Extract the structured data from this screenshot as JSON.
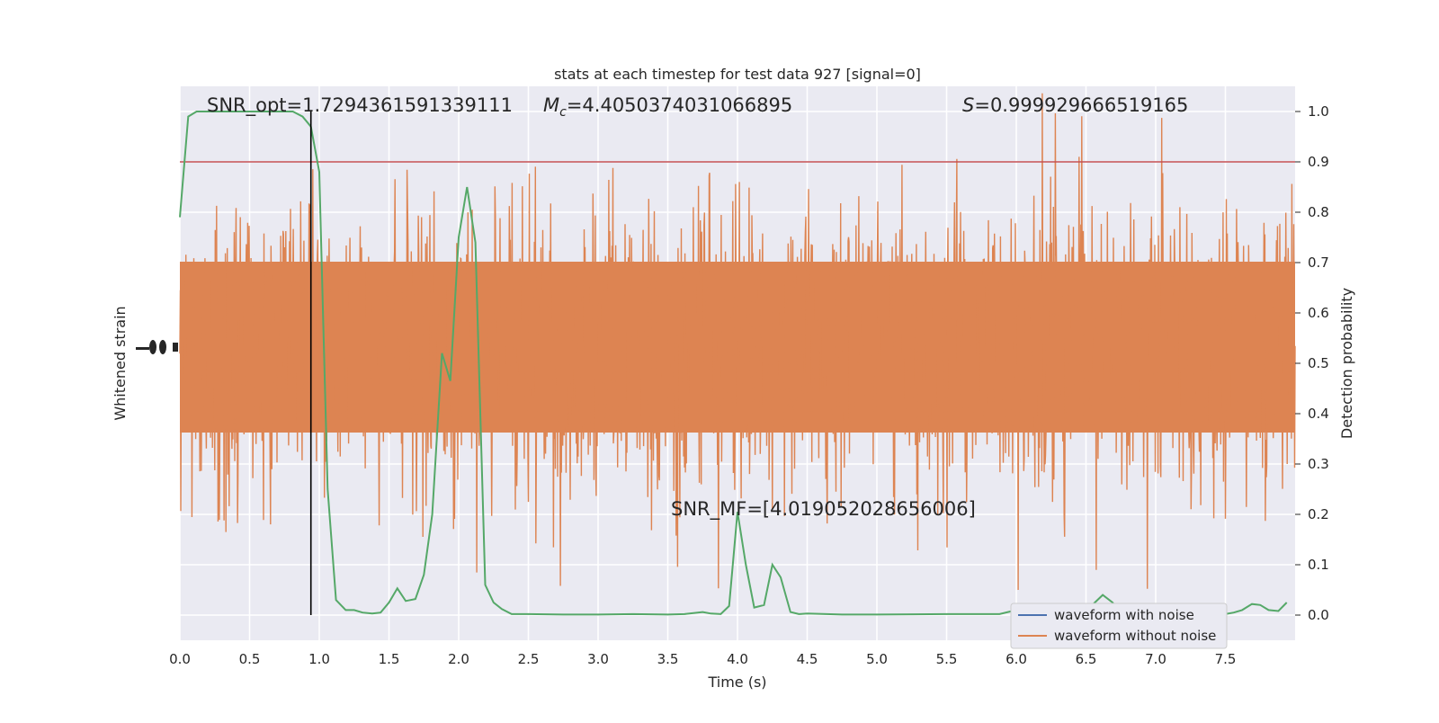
{
  "chart_data": {
    "type": "line",
    "title": "stats at each timestep for test data 927 [signal=0]",
    "xlabel": "Time (s)",
    "ylabel_left": "Whitened strain",
    "ylabel_right": "Detection probability",
    "xlim": [
      0.0,
      8.0
    ],
    "ylim_right": [
      -0.05,
      1.05
    ],
    "x_ticks": [
      "0.0",
      "0.5",
      "1.0",
      "1.5",
      "2.0",
      "2.5",
      "3.0",
      "3.5",
      "4.0",
      "4.5",
      "5.0",
      "5.5",
      "6.0",
      "6.5",
      "7.0",
      "7.5"
    ],
    "y_ticks_right": [
      "0.0",
      "0.1",
      "0.2",
      "0.3",
      "0.4",
      "0.5",
      "0.6",
      "0.7",
      "0.8",
      "0.9",
      "1.0"
    ],
    "grid": true,
    "legend_placement": "lower-right",
    "annotations": {
      "snr_opt": "SNR_opt=1.7294361591339111",
      "mc_symbol": "M",
      "mc_subscript": "c",
      "mc_value": "=4.4050374031066895",
      "s_symbol": "S",
      "s_value": "=0.999929666519165",
      "snr_mf": "SNR_MF=[4.019052028656006]"
    },
    "threshold": 0.9,
    "marker_time": 0.94,
    "series": [
      {
        "name": "waveform with noise",
        "color": "#4c72b0"
      },
      {
        "name": "waveform without noise",
        "color": "#dd8452"
      }
    ],
    "detection_probability": {
      "color": "#55a868",
      "x": [
        0.0,
        0.06,
        0.12,
        0.19,
        0.25,
        0.31,
        0.38,
        0.44,
        0.5,
        0.56,
        0.62,
        0.69,
        0.75,
        0.81,
        0.88,
        0.94,
        1.0,
        1.06,
        1.12,
        1.19,
        1.25,
        1.31,
        1.38,
        1.44,
        1.5,
        1.56,
        1.62,
        1.69,
        1.75,
        1.81,
        1.88,
        1.94,
        2.0,
        2.06,
        2.12,
        2.19,
        2.25,
        2.31,
        2.38,
        2.5,
        2.75,
        3.0,
        3.25,
        3.5,
        3.62,
        3.75,
        3.81,
        3.88,
        3.94,
        4.0,
        4.06,
        4.12,
        4.19,
        4.25,
        4.31,
        4.38,
        4.44,
        4.5,
        4.75,
        5.0,
        5.5,
        5.88,
        6.0,
        6.25,
        6.5,
        6.62,
        6.69,
        6.75,
        7.0,
        7.5,
        7.56,
        7.62,
        7.69,
        7.75,
        7.81,
        7.88,
        7.94
      ],
      "y": [
        0.79,
        0.99,
        1.0,
        1.0,
        1.0,
        1.0,
        1.0,
        1.0,
        1.0,
        1.0,
        1.0,
        1.0,
        1.0,
        1.0,
        0.99,
        0.97,
        0.88,
        0.25,
        0.03,
        0.01,
        0.01,
        0.005,
        0.003,
        0.005,
        0.025,
        0.053,
        0.028,
        0.032,
        0.08,
        0.2,
        0.52,
        0.465,
        0.75,
        0.85,
        0.74,
        0.06,
        0.025,
        0.012,
        0.002,
        0.002,
        0.001,
        0.001,
        0.002,
        0.001,
        0.002,
        0.006,
        0.003,
        0.002,
        0.018,
        0.205,
        0.1,
        0.015,
        0.02,
        0.1,
        0.075,
        0.006,
        0.002,
        0.003,
        0.001,
        0.001,
        0.002,
        0.002,
        0.01,
        0.012,
        0.008,
        0.04,
        0.025,
        0.004,
        0.001,
        0.002,
        0.005,
        0.01,
        0.022,
        0.02,
        0.01,
        0.008,
        0.025
      ]
    }
  }
}
